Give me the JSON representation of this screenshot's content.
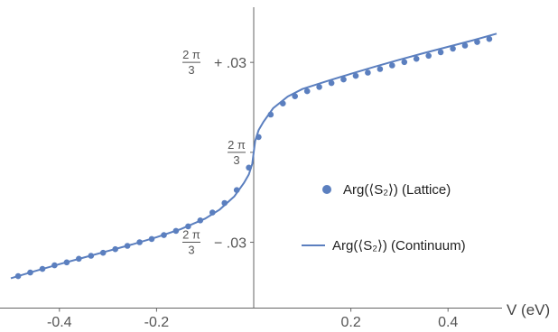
{
  "chart_data": {
    "type": "scatter",
    "xlabel": "V (eV)",
    "ylabel": "",
    "xlim": [
      -0.5,
      0.5
    ],
    "ylim": [
      -0.05,
      0.0475
    ],
    "x_ticks": [
      {
        "value": -0.4,
        "label": "-0.4"
      },
      {
        "value": -0.2,
        "label": "-0.2"
      },
      {
        "value": 0.2,
        "label": "0.2"
      },
      {
        "value": 0.4,
        "label": "0.4"
      }
    ],
    "y_ticks": [
      {
        "value": 0.03,
        "num": "2 π",
        "den": "3",
        "suffix": "+ .03"
      },
      {
        "value": 0.0,
        "num": "2 π",
        "den": "3",
        "suffix": ""
      },
      {
        "value": -0.03,
        "num": "2 π",
        "den": "3",
        "suffix": "− .03"
      }
    ],
    "series": [
      {
        "name": "Arg(⟨S₂⟩) (Lattice)",
        "mode": "markers",
        "color": "#5b7fbf",
        "x": [
          -0.485,
          -0.46,
          -0.435,
          -0.41,
          -0.385,
          -0.36,
          -0.335,
          -0.31,
          -0.285,
          -0.26,
          -0.235,
          -0.21,
          -0.185,
          -0.16,
          -0.135,
          -0.11,
          -0.085,
          -0.06,
          -0.035,
          -0.01,
          0.01,
          0.035,
          0.06,
          0.085,
          0.11,
          0.135,
          0.16,
          0.185,
          0.21,
          0.235,
          0.26,
          0.285,
          0.31,
          0.335,
          0.36,
          0.385,
          0.41,
          0.435,
          0.46,
          0.485
        ],
        "y": [
          -0.0413,
          -0.0401,
          -0.0389,
          -0.0377,
          -0.0367,
          -0.0355,
          -0.0345,
          -0.0335,
          -0.0323,
          -0.0312,
          -0.03,
          -0.0289,
          -0.0276,
          -0.0262,
          -0.0247,
          -0.0227,
          -0.0201,
          -0.0169,
          -0.0126,
          -0.0051,
          0.0051,
          0.0126,
          0.0163,
          0.0187,
          0.0204,
          0.0218,
          0.0231,
          0.0243,
          0.0255,
          0.0266,
          0.0278,
          0.029,
          0.0301,
          0.0312,
          0.0322,
          0.0334,
          0.0346,
          0.0356,
          0.0368,
          0.0378
        ]
      },
      {
        "name": "Arg(⟨S₂⟩) (Continuum)",
        "mode": "line",
        "color": "#5b7fbf",
        "x": [
          -0.5,
          -0.45,
          -0.4,
          -0.35,
          -0.3,
          -0.25,
          -0.2,
          -0.15,
          -0.1,
          -0.07,
          -0.04,
          -0.02,
          -0.01,
          -0.003,
          0.0,
          0.003,
          0.01,
          0.02,
          0.04,
          0.07,
          0.1,
          0.15,
          0.2,
          0.25,
          0.3,
          0.35,
          0.4,
          0.45,
          0.5
        ],
        "y": [
          -0.042,
          -0.0396,
          -0.0373,
          -0.0351,
          -0.0329,
          -0.0307,
          -0.0283,
          -0.0256,
          -0.0221,
          -0.0191,
          -0.0147,
          -0.0102,
          -0.0074,
          -0.0038,
          0.0,
          0.0038,
          0.0074,
          0.0102,
          0.0147,
          0.0186,
          0.0211,
          0.0237,
          0.0262,
          0.0286,
          0.0309,
          0.0331,
          0.0352,
          0.0373,
          0.0396
        ]
      }
    ],
    "legend": {
      "position": "right",
      "entries": [
        "Arg(⟨S₂⟩) (Lattice)",
        "Arg(⟨S₂⟩) (Continuum)"
      ]
    }
  }
}
